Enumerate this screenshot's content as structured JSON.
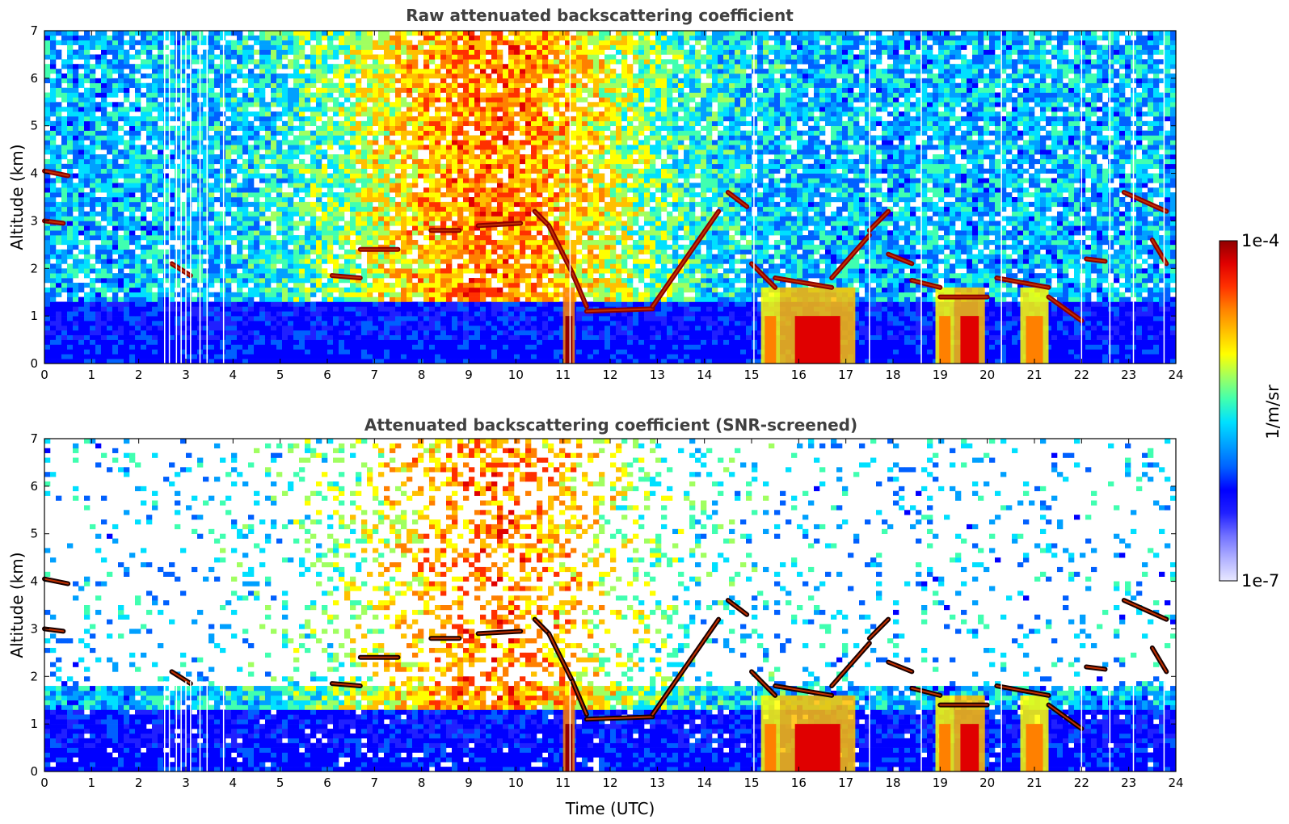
{
  "chart_data": [
    {
      "type": "heatmap",
      "title": "Raw attenuated backscattering coefficient",
      "xlabel": "",
      "ylabel": "Altitude (km)",
      "xlim": [
        0,
        24
      ],
      "ylim": [
        0,
        7
      ],
      "xticks": [
        "0",
        "1",
        "2",
        "3",
        "4",
        "5",
        "6",
        "7",
        "8",
        "9",
        "10",
        "11",
        "12",
        "13",
        "14",
        "15",
        "16",
        "17",
        "18",
        "19",
        "20",
        "21",
        "22",
        "23",
        "24"
      ],
      "yticks": [
        "0",
        "1",
        "2",
        "3",
        "4",
        "5",
        "6",
        "7"
      ],
      "screened": false,
      "cloud_layers": [
        {
          "x": [
            0.0,
            0.5
          ],
          "y": [
            4.05,
            3.95
          ]
        },
        {
          "x": [
            0.0,
            0.4
          ],
          "y": [
            3.0,
            2.95
          ]
        },
        {
          "x": [
            2.7,
            3.1
          ],
          "y": [
            2.1,
            1.85
          ]
        },
        {
          "x": [
            6.1,
            6.7
          ],
          "y": [
            1.85,
            1.8
          ]
        },
        {
          "x": [
            6.7,
            7.5
          ],
          "y": [
            2.4,
            2.4
          ]
        },
        {
          "x": [
            8.2,
            8.8
          ],
          "y": [
            2.8,
            2.8
          ]
        },
        {
          "x": [
            9.2,
            10.1
          ],
          "y": [
            2.9,
            2.95
          ]
        },
        {
          "x": [
            10.4,
            10.7
          ],
          "y": [
            3.2,
            2.9
          ]
        },
        {
          "x": [
            10.7,
            11.2
          ],
          "y": [
            2.9,
            1.9
          ]
        },
        {
          "x": [
            11.2,
            11.5
          ],
          "y": [
            1.9,
            1.2
          ]
        },
        {
          "x": [
            11.5,
            12.9
          ],
          "y": [
            1.1,
            1.15
          ]
        },
        {
          "x": [
            12.9,
            14.3
          ],
          "y": [
            1.2,
            3.2
          ]
        },
        {
          "x": [
            14.5,
            14.9
          ],
          "y": [
            3.6,
            3.3
          ]
        },
        {
          "x": [
            15.0,
            15.5
          ],
          "y": [
            2.1,
            1.6
          ]
        },
        {
          "x": [
            15.5,
            16.7
          ],
          "y": [
            1.8,
            1.6
          ]
        },
        {
          "x": [
            16.7,
            17.5
          ],
          "y": [
            1.8,
            2.7
          ]
        },
        {
          "x": [
            17.5,
            17.9
          ],
          "y": [
            2.8,
            3.2
          ]
        },
        {
          "x": [
            17.9,
            18.4
          ],
          "y": [
            2.3,
            2.1
          ]
        },
        {
          "x": [
            18.4,
            19.0
          ],
          "y": [
            1.75,
            1.6
          ]
        },
        {
          "x": [
            19.0,
            20.0
          ],
          "y": [
            1.4,
            1.4
          ]
        },
        {
          "x": [
            20.2,
            21.3
          ],
          "y": [
            1.8,
            1.6
          ]
        },
        {
          "x": [
            21.3,
            22.0
          ],
          "y": [
            1.4,
            0.9
          ]
        },
        {
          "x": [
            22.1,
            22.5
          ],
          "y": [
            2.2,
            2.15
          ]
        },
        {
          "x": [
            22.9,
            23.8
          ],
          "y": [
            3.6,
            3.2
          ]
        },
        {
          "x": [
            23.5,
            23.8
          ],
          "y": [
            2.6,
            2.1
          ]
        }
      ],
      "precipitation": [
        {
          "x": [
            11.0,
            11.25
          ],
          "intensity": 1.0
        },
        {
          "x": [
            15.2,
            15.6
          ],
          "intensity": 0.6
        },
        {
          "x": [
            15.6,
            17.2
          ],
          "intensity": 0.95
        },
        {
          "x": [
            18.9,
            19.3
          ],
          "intensity": 0.6
        },
        {
          "x": [
            19.3,
            19.95
          ],
          "intensity": 0.8
        },
        {
          "x": [
            20.7,
            21.3
          ],
          "intensity": 0.5
        }
      ],
      "data_gaps_x": [
        2.55,
        2.65,
        2.8,
        2.9,
        3.0,
        3.1,
        3.3,
        3.45,
        3.8,
        11.15,
        15.05,
        17.5,
        18.6,
        20.3,
        22.0,
        22.6,
        23.1,
        23.75
      ]
    },
    {
      "type": "heatmap",
      "title": "Attenuated backscattering coefficient (SNR-screened)",
      "xlabel": "Time (UTC)",
      "ylabel": "Altitude (km)",
      "xlim": [
        0,
        24
      ],
      "ylim": [
        0,
        7
      ],
      "xticks": [
        "0",
        "1",
        "2",
        "3",
        "4",
        "5",
        "6",
        "7",
        "8",
        "9",
        "10",
        "11",
        "12",
        "13",
        "14",
        "15",
        "16",
        "17",
        "18",
        "19",
        "20",
        "21",
        "22",
        "23",
        "24"
      ],
      "yticks": [
        "0",
        "1",
        "2",
        "3",
        "4",
        "5",
        "6",
        "7"
      ],
      "screened": true
    }
  ],
  "colorbar": {
    "label": "1/m/sr",
    "max_label": "1e-4",
    "min_label": "1e-7",
    "colormap": [
      "#e8e8ff",
      "#b0b0ff",
      "#7070ff",
      "#2020ff",
      "#0000ff",
      "#0060ff",
      "#00a0ff",
      "#00e0ff",
      "#40ffb0",
      "#a0ff60",
      "#ffff00",
      "#ffc000",
      "#ff8000",
      "#ff3000",
      "#e00000",
      "#900000"
    ]
  }
}
